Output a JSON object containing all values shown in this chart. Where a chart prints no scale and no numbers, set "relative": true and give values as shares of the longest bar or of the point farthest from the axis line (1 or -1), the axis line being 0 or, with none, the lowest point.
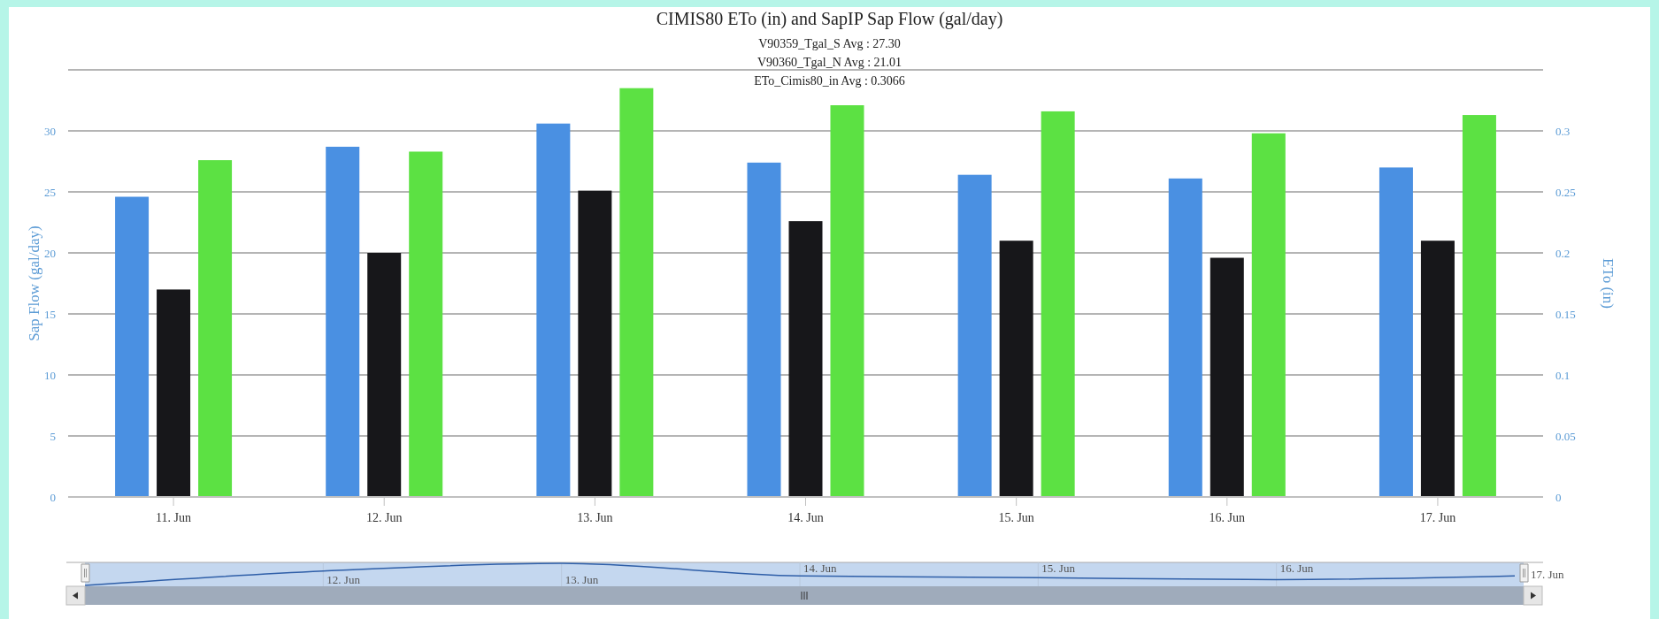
{
  "chart_data": [
    {
      "type": "bar",
      "title": "CIMIS80 ETo (in) and SapIP Sap Flow (gal/day)",
      "annotations": [
        "V90359_Tgal_S Avg : 27.30",
        "V90360_Tgal_N Avg : 21.01",
        "ETo_Cimis80_in Avg : 0.3066"
      ],
      "categories": [
        "11. Jun",
        "12. Jun",
        "13. Jun",
        "14. Jun",
        "15. Jun",
        "16. Jun",
        "17. Jun"
      ],
      "series": [
        {
          "color": "#4a90e2",
          "values": [
            24.6,
            28.7,
            30.6,
            27.4,
            26.4,
            26.1,
            27.0
          ]
        },
        {
          "color": "#17171a",
          "values": [
            17.0,
            20.0,
            25.1,
            22.6,
            21.0,
            19.6,
            21.0
          ]
        },
        {
          "color": "#5ce143",
          "axis": "y2",
          "values": [
            0.276,
            0.283,
            0.335,
            0.321,
            0.316,
            0.298,
            0.313
          ]
        }
      ],
      "ylabel": "Sap Flow (gal/day)",
      "y2label": "ETo (in)",
      "ylim": [
        0,
        35
      ],
      "yticks": [
        0,
        5,
        10,
        15,
        20,
        25,
        30,
        {
          "value": 35,
          "label": null
        }
      ],
      "y2lim": [
        0,
        0.35
      ],
      "y2ticks": [
        0,
        0.05,
        0.1,
        0.15,
        0.2,
        0.25,
        0.3,
        {
          "value": 0.35,
          "label": null
        }
      ],
      "grid": "y"
    },
    {
      "type": "line",
      "relative": true,
      "categories": [
        null,
        "12. Jun",
        "13. Jun",
        "14. Jun",
        "15. Jun",
        "16. Jun",
        "17. Jun"
      ],
      "values": [
        0,
        0.65,
        1,
        0.43,
        0.35,
        0.26,
        0.43
      ],
      "color": "#2f5fa8",
      "grid": "x"
    }
  ]
}
